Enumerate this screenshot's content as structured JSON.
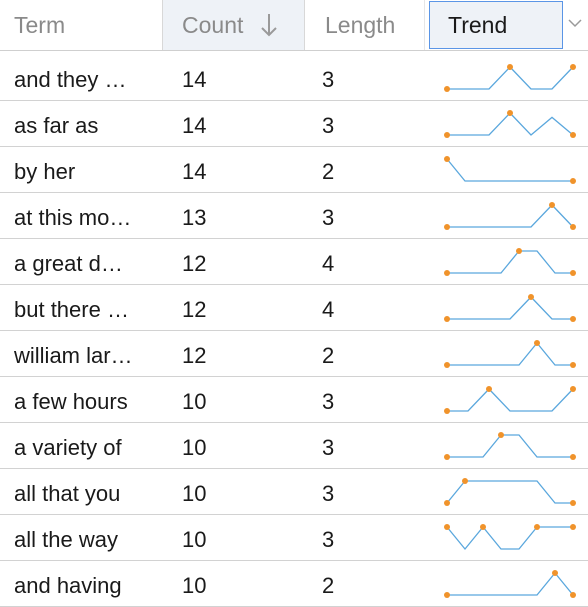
{
  "header": {
    "term": "Term",
    "count": "Count",
    "length": "Length",
    "trend": "Trend"
  },
  "colors": {
    "line": "#5aa7dd",
    "dot": "#f0932b",
    "selected_border": "#5a95e6"
  },
  "icons": {
    "sort": "arrow-down-icon",
    "dropdown": "chevron-down-icon"
  },
  "rows": [
    {
      "term": "and they …",
      "count": "14",
      "length": "3",
      "trend": [
        0,
        0,
        0,
        1,
        0,
        0,
        1
      ]
    },
    {
      "term": "as far as",
      "count": "14",
      "length": "3",
      "trend": [
        0,
        0,
        0,
        1,
        0,
        0.8,
        0
      ]
    },
    {
      "term": "by her",
      "count": "14",
      "length": "2",
      "trend": [
        1,
        0,
        0,
        0,
        0,
        0,
        0,
        0
      ]
    },
    {
      "term": "at this mo…",
      "count": "13",
      "length": "3",
      "trend": [
        0,
        0,
        0,
        0,
        0,
        1,
        0
      ]
    },
    {
      "term": "a great d…",
      "count": "12",
      "length": "4",
      "trend": [
        0,
        0,
        0,
        0,
        1,
        1,
        0,
        0
      ]
    },
    {
      "term": "but there …",
      "count": "12",
      "length": "4",
      "trend": [
        0,
        0,
        0,
        0,
        1,
        0,
        0
      ]
    },
    {
      "term": "william lar…",
      "count": "12",
      "length": "2",
      "trend": [
        0,
        0,
        0,
        0,
        0,
        1,
        0,
        0
      ]
    },
    {
      "term": "a few hours",
      "count": "10",
      "length": "3",
      "trend": [
        0,
        0,
        1,
        0,
        0,
        0,
        1
      ]
    },
    {
      "term": "a variety of",
      "count": "10",
      "length": "3",
      "trend": [
        0,
        0,
        0,
        1,
        1,
        0,
        0,
        0
      ]
    },
    {
      "term": "all that you",
      "count": "10",
      "length": "3",
      "trend": [
        0,
        1,
        1,
        1,
        1,
        1,
        0,
        0
      ]
    },
    {
      "term": "all the way",
      "count": "10",
      "length": "3",
      "trend": [
        1,
        0,
        1,
        0,
        0,
        1,
        1,
        1
      ]
    },
    {
      "term": "and having",
      "count": "10",
      "length": "2",
      "trend": [
        0,
        0,
        0,
        0,
        0,
        0,
        1,
        0
      ]
    }
  ]
}
